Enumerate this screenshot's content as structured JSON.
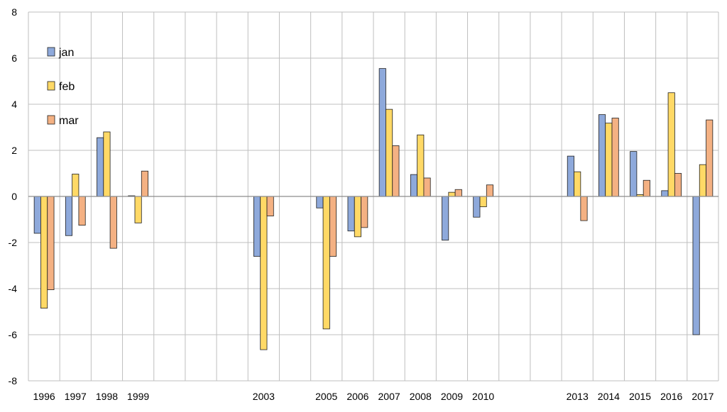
{
  "chart_data": {
    "type": "bar",
    "title": "",
    "xlabel": "",
    "ylabel": "",
    "ylim": [
      -8,
      8
    ],
    "ytick_step": 2,
    "yticks": [
      "8",
      "6",
      "4",
      "2",
      "0",
      "-2",
      "-4",
      "-6",
      "-8"
    ],
    "grid": true,
    "legend_position": "top-left",
    "categories": [
      "1996",
      "1997",
      "1998",
      "1999",
      "",
      "",
      "",
      "2003",
      "",
      "2005",
      "2006",
      "2007",
      "2008",
      "2009",
      "2010",
      "",
      "",
      "2013",
      "2014",
      "2015",
      "2016",
      "2017"
    ],
    "series": [
      {
        "name": "jan",
        "color": "#8EA9DB",
        "values": [
          -1.6,
          -1.7,
          2.55,
          0.03,
          null,
          null,
          null,
          -2.6,
          null,
          -0.5,
          -1.5,
          5.55,
          0.95,
          -1.9,
          -0.9,
          null,
          null,
          1.75,
          3.55,
          1.95,
          0.25,
          -6.0
        ]
      },
      {
        "name": "feb",
        "color": "#FFD966",
        "values": [
          -4.85,
          0.97,
          2.8,
          -1.15,
          null,
          null,
          null,
          -6.65,
          null,
          -5.75,
          -1.75,
          3.78,
          2.67,
          0.18,
          -0.45,
          null,
          null,
          1.07,
          3.18,
          0.08,
          4.5,
          1.38
        ]
      },
      {
        "name": "mar",
        "color": "#F4B183",
        "values": [
          -4.05,
          -1.25,
          -2.25,
          1.1,
          null,
          null,
          null,
          -0.85,
          null,
          -2.6,
          -1.35,
          2.2,
          0.8,
          0.3,
          0.5,
          null,
          null,
          -1.05,
          3.4,
          0.7,
          1.0,
          3.32
        ]
      }
    ]
  }
}
